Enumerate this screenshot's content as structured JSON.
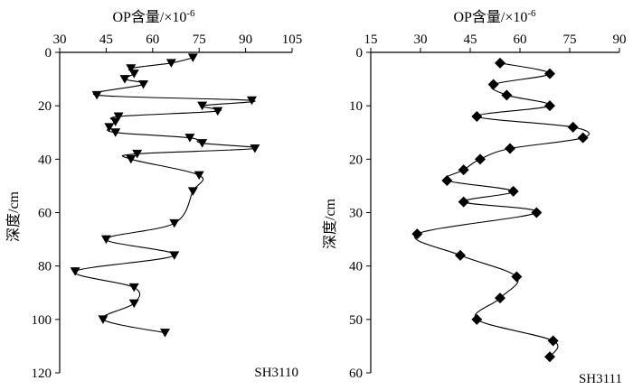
{
  "chart_data": [
    {
      "type": "line",
      "id": "SH3110",
      "title": "OP含量/×10",
      "title_exponent": "-6",
      "xlabel": "OP含量/×10⁻⁶",
      "ylabel": "深度/cm",
      "x_axis_position": "top",
      "y_inverted": true,
      "xlim": [
        30,
        105
      ],
      "ylim": [
        0,
        120
      ],
      "xticks": [
        "30",
        "45",
        "60",
        "75",
        "90",
        "105"
      ],
      "yticks": [
        "0",
        "20",
        "40",
        "60",
        "80",
        "100",
        "120"
      ],
      "marker": "triangle-down",
      "grid": false,
      "label": "SH3110",
      "series": [
        {
          "x": [
            73,
            66,
            53,
            54,
            51,
            57,
            42,
            92,
            76,
            81,
            49,
            48,
            46,
            48,
            72,
            76,
            93,
            55,
            53,
            75,
            73,
            67,
            45,
            67,
            35,
            54,
            54,
            44,
            64
          ],
          "y": [
            2,
            4,
            6,
            8,
            10,
            12,
            16,
            18,
            20,
            22,
            24,
            26,
            28,
            30,
            32,
            34,
            36,
            38,
            40,
            46,
            52,
            64,
            70,
            76,
            82,
            88,
            94,
            100,
            105
          ]
        }
      ]
    },
    {
      "type": "line",
      "id": "SH3111",
      "title": "OP含量/×10",
      "title_exponent": "-6",
      "xlabel": "OP含量/×10⁻⁶",
      "ylabel": "深度/cm",
      "x_axis_position": "top",
      "y_inverted": true,
      "xlim": [
        15,
        90
      ],
      "ylim": [
        0,
        60
      ],
      "xticks": [
        "15",
        "30",
        "45",
        "60",
        "75",
        "90"
      ],
      "yticks": [
        "0",
        "10",
        "20",
        "30",
        "40",
        "50",
        "60"
      ],
      "marker": "diamond",
      "grid": false,
      "label": "SH3111",
      "series": [
        {
          "x": [
            54,
            69,
            52,
            56,
            69,
            47,
            76,
            79,
            57,
            48,
            43,
            38,
            58,
            43,
            65,
            29,
            42,
            59,
            54,
            47,
            70,
            69
          ],
          "y": [
            2,
            4,
            6,
            8,
            10,
            12,
            14,
            16,
            18,
            20,
            22,
            24,
            26,
            28,
            30,
            34,
            38,
            42,
            46,
            50,
            54,
            57
          ]
        }
      ]
    }
  ]
}
